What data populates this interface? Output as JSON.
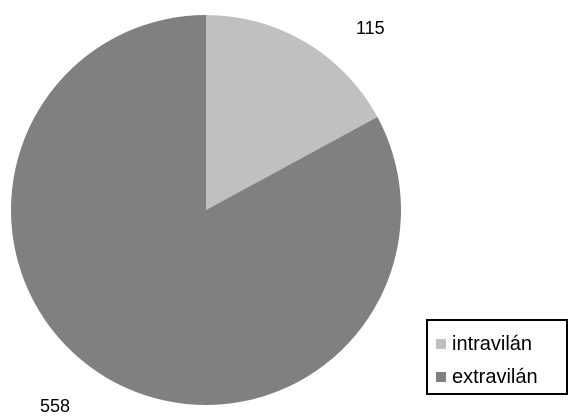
{
  "chart_data": {
    "type": "pie",
    "title": "",
    "categories": [
      "intravilán",
      "extravilán"
    ],
    "values": [
      115,
      558
    ],
    "data_labels": [
      "115",
      "558"
    ],
    "colors": [
      "#c0c0c0",
      "#808080"
    ],
    "legend": {
      "placement": "bottom-right",
      "entries": [
        "intravilán",
        "extravilán"
      ]
    }
  }
}
